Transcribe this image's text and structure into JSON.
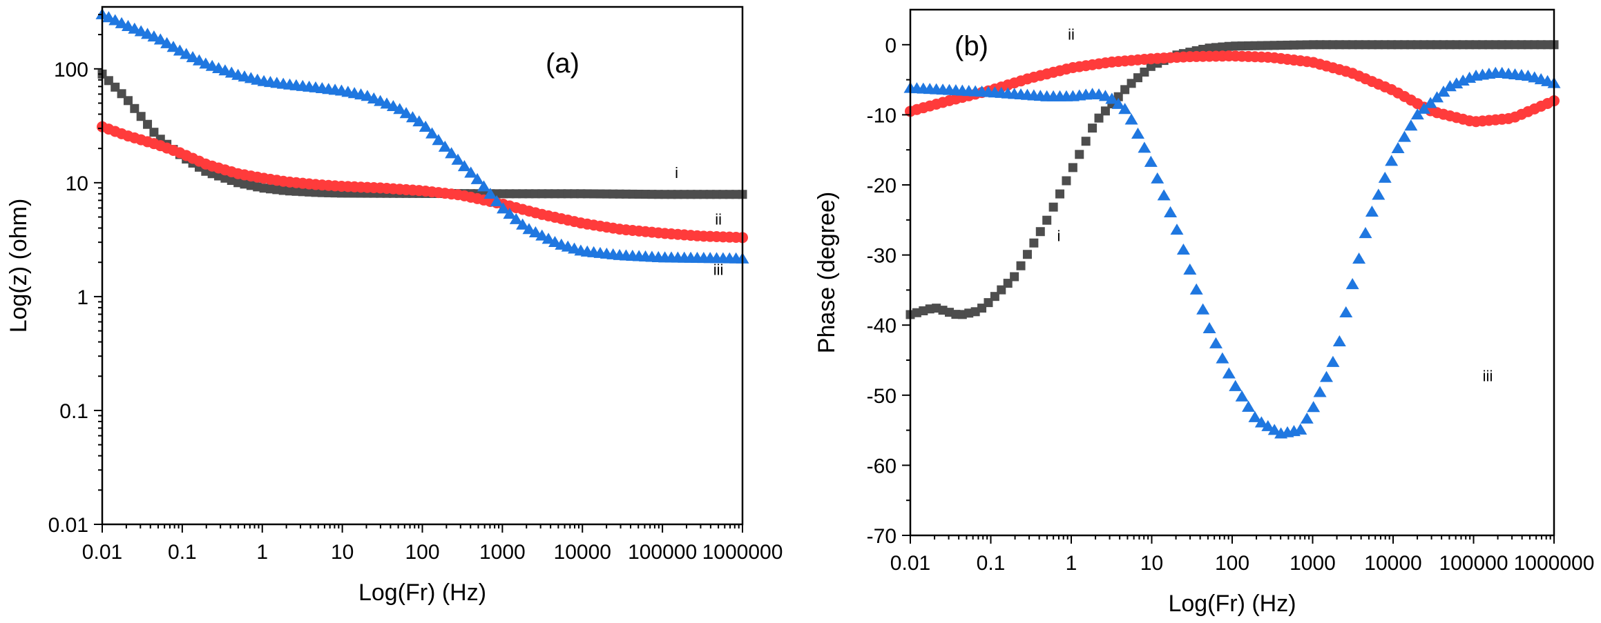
{
  "chart_data": [
    {
      "type": "scatter",
      "panel_label": "(a)",
      "xlabel": "Log(Fr) (Hz)",
      "ylabel": "Log(z) (ohm)",
      "xscale": "log",
      "yscale": "log",
      "xlim": [
        0.01,
        1000000
      ],
      "ylim": [
        0.01,
        350
      ],
      "x_ticks": [
        0.01,
        0.1,
        1,
        10,
        100,
        1000,
        10000,
        100000,
        1000000
      ],
      "x_tick_labels": [
        "0.01",
        "0.1",
        "1",
        "10",
        "100",
        "1000",
        "10000",
        "100000",
        "1000000"
      ],
      "y_ticks": [
        0.01,
        0.1,
        1,
        10,
        100
      ],
      "y_tick_labels": [
        "0.01",
        "0.1",
        "1",
        "10",
        "100"
      ],
      "series": [
        {
          "name": "i",
          "marker": "square",
          "color": "#4d4d4d",
          "label_point": [
            150000,
            11
          ],
          "points": [
            [
              0.01,
              90
            ],
            [
              0.02,
              55
            ],
            [
              0.05,
              25
            ],
            [
              0.1,
              17
            ],
            [
              0.2,
              12.5
            ],
            [
              0.5,
              10
            ],
            [
              1,
              9
            ],
            [
              2,
              8.5
            ],
            [
              5,
              8.2
            ],
            [
              10,
              8.1
            ],
            [
              100,
              8.05
            ],
            [
              1000,
              8
            ],
            [
              10000,
              8
            ],
            [
              100000,
              7.9
            ],
            [
              1000000,
              7.9
            ]
          ]
        },
        {
          "name": "ii",
          "marker": "circle",
          "color": "#ff3b3b",
          "label_point": [
            500000,
            4.3
          ],
          "points": [
            [
              0.01,
              31
            ],
            [
              0.02,
              26
            ],
            [
              0.05,
              21.5
            ],
            [
              0.1,
              18
            ],
            [
              0.2,
              14.5
            ],
            [
              0.5,
              12
            ],
            [
              1,
              11
            ],
            [
              2,
              10.2
            ],
            [
              5,
              9.6
            ],
            [
              10,
              9.3
            ],
            [
              30,
              9
            ],
            [
              100,
              8.5
            ],
            [
              300,
              7.8
            ],
            [
              1000,
              6.5
            ],
            [
              3000,
              5.3
            ],
            [
              10000,
              4.4
            ],
            [
              30000,
              3.9
            ],
            [
              100000,
              3.6
            ],
            [
              300000,
              3.4
            ],
            [
              1000000,
              3.3
            ]
          ]
        },
        {
          "name": "iii",
          "marker": "triangle",
          "color": "#1f77e0",
          "label_point": [
            500000,
            1.55
          ],
          "points": [
            [
              0.01,
              300
            ],
            [
              0.02,
              240
            ],
            [
              0.05,
              185
            ],
            [
              0.1,
              140
            ],
            [
              0.2,
              110
            ],
            [
              0.5,
              88
            ],
            [
              1,
              78
            ],
            [
              2,
              73
            ],
            [
              5,
              68
            ],
            [
              10,
              64
            ],
            [
              20,
              58
            ],
            [
              50,
              45
            ],
            [
              100,
              33
            ],
            [
              200,
              20
            ],
            [
              500,
              10.5
            ],
            [
              1000,
              6
            ],
            [
              2000,
              4
            ],
            [
              5000,
              2.9
            ],
            [
              10000,
              2.5
            ],
            [
              30000,
              2.3
            ],
            [
              100000,
              2.2
            ],
            [
              1000000,
              2.15
            ]
          ]
        }
      ]
    },
    {
      "type": "scatter",
      "panel_label": "(b)",
      "xlabel": "Log(Fr) (Hz)",
      "ylabel": "Phase (degree)",
      "xscale": "log",
      "yscale": "linear",
      "xlim": [
        0.01,
        1000000
      ],
      "ylim": [
        -70,
        5
      ],
      "x_ticks": [
        0.01,
        0.1,
        1,
        10,
        100,
        1000,
        10000,
        100000,
        1000000
      ],
      "x_tick_labels": [
        "0.01",
        "0.1",
        "1",
        "10",
        "100",
        "1000",
        "10000",
        "100000",
        "1000000"
      ],
      "y_ticks": [
        0,
        -10,
        -20,
        -30,
        -40,
        -50,
        -60,
        -70
      ],
      "y_tick_labels": [
        "0",
        "-10",
        "-20",
        "-30",
        "-40",
        "-50",
        "-60",
        "-70"
      ],
      "series": [
        {
          "name": "i",
          "marker": "square",
          "color": "#4d4d4d",
          "label_point": [
            0.7,
            -28
          ],
          "points": [
            [
              0.01,
              -38.5
            ],
            [
              0.02,
              -37.5
            ],
            [
              0.04,
              -38.6
            ],
            [
              0.07,
              -38
            ],
            [
              0.1,
              -36.5
            ],
            [
              0.2,
              -33
            ],
            [
              0.5,
              -25
            ],
            [
              1,
              -18
            ],
            [
              2,
              -11
            ],
            [
              5,
              -6
            ],
            [
              10,
              -3
            ],
            [
              20,
              -1.5
            ],
            [
              50,
              -0.5
            ],
            [
              100,
              -0.2
            ],
            [
              1000,
              0
            ],
            [
              1000000,
              0
            ]
          ]
        },
        {
          "name": "ii",
          "marker": "circle",
          "color": "#ff3b3b",
          "label_point": [
            1,
            0.7
          ],
          "points": [
            [
              0.01,
              -9.5
            ],
            [
              0.03,
              -8
            ],
            [
              0.1,
              -6.5
            ],
            [
              0.3,
              -4.8
            ],
            [
              1,
              -3.3
            ],
            [
              3,
              -2.5
            ],
            [
              10,
              -2
            ],
            [
              30,
              -1.7
            ],
            [
              100,
              -1.6
            ],
            [
              300,
              -1.8
            ],
            [
              1000,
              -2.5
            ],
            [
              3000,
              -4
            ],
            [
              10000,
              -6.5
            ],
            [
              30000,
              -9.5
            ],
            [
              100000,
              -11
            ],
            [
              300000,
              -10.5
            ],
            [
              1000000,
              -8
            ]
          ]
        },
        {
          "name": "iii",
          "marker": "triangle",
          "color": "#1f77e0",
          "label_point": [
            150000,
            -48
          ],
          "points": [
            [
              0.01,
              -6.2
            ],
            [
              0.1,
              -6.8
            ],
            [
              0.5,
              -7.4
            ],
            [
              1,
              -7.4
            ],
            [
              2,
              -7
            ],
            [
              3,
              -7.5
            ],
            [
              5,
              -9.5
            ],
            [
              10,
              -17
            ],
            [
              20,
              -26
            ],
            [
              50,
              -40
            ],
            [
              100,
              -48
            ],
            [
              200,
              -53.5
            ],
            [
              400,
              -55.5
            ],
            [
              700,
              -55
            ],
            [
              1000,
              -52
            ],
            [
              2000,
              -44
            ],
            [
              3000,
              -35
            ],
            [
              5000,
              -25
            ],
            [
              10000,
              -16
            ],
            [
              20000,
              -10
            ],
            [
              50000,
              -6
            ],
            [
              100000,
              -4.5
            ],
            [
              200000,
              -4
            ],
            [
              500000,
              -4.5
            ],
            [
              1000000,
              -5.5
            ]
          ]
        }
      ]
    }
  ]
}
